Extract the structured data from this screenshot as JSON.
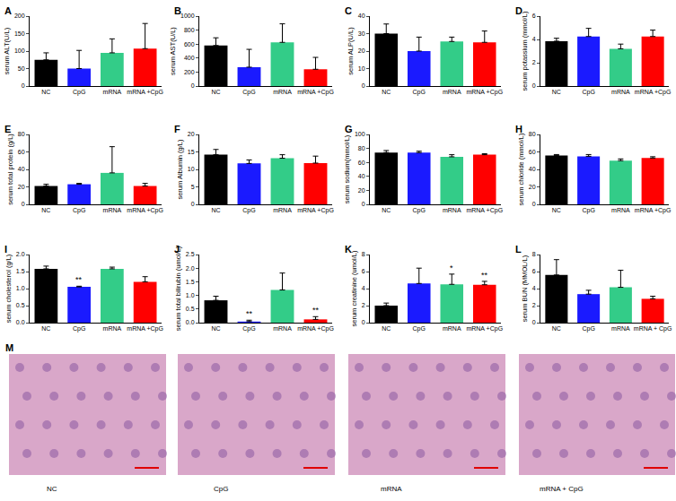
{
  "chart_data": [
    {
      "type": "bar",
      "label": "A",
      "y_label": "serum ALT(U/L)",
      "categories": [
        "NC",
        "CpG",
        "mRNA",
        "mRNA +CpG"
      ],
      "values": [
        75,
        50,
        95,
        107
      ],
      "errors": [
        20,
        52,
        40,
        72
      ],
      "significance": [
        null,
        null,
        null,
        null
      ],
      "colors": [
        "#000000",
        "#1a1aff",
        "#33cc88",
        "#ff0000"
      ],
      "ylim": [
        0,
        200
      ],
      "yticks": [
        0,
        50,
        100,
        150,
        200
      ]
    },
    {
      "type": "bar",
      "label": "B",
      "y_label": "serum AST(U/L)",
      "categories": [
        "NC",
        "CpG",
        "mRNA",
        "mRNA +CpG"
      ],
      "values": [
        580,
        270,
        625,
        240
      ],
      "errors": [
        110,
        255,
        265,
        170
      ],
      "significance": [
        null,
        null,
        null,
        null
      ],
      "colors": [
        "#000000",
        "#1a1aff",
        "#33cc88",
        "#ff0000"
      ],
      "ylim": [
        0,
        1000
      ],
      "yticks": [
        0,
        200,
        400,
        600,
        800,
        1000
      ]
    },
    {
      "type": "bar",
      "label": "C",
      "y_label": "serum ALP(U/L)",
      "categories": [
        "NC",
        "CpG",
        "mRNA",
        "mRNA +CpG"
      ],
      "values": [
        30,
        20,
        25.5,
        25
      ],
      "errors": [
        5.5,
        8,
        2.5,
        6.5
      ],
      "significance": [
        null,
        null,
        null,
        null
      ],
      "colors": [
        "#000000",
        "#1a1aff",
        "#33cc88",
        "#ff0000"
      ],
      "ylim": [
        0,
        40
      ],
      "yticks": [
        0,
        10,
        20,
        30,
        40
      ]
    },
    {
      "type": "bar",
      "label": "D",
      "y_label": "serum potassium (mmol/L)",
      "categories": [
        "NC",
        "CpG",
        "mRNA",
        "mRNA +CpG"
      ],
      "values": [
        3.85,
        4.25,
        3.2,
        4.25
      ],
      "errors": [
        0.25,
        0.7,
        0.4,
        0.55
      ],
      "significance": [
        null,
        null,
        null,
        null
      ],
      "colors": [
        "#000000",
        "#1a1aff",
        "#33cc88",
        "#ff0000"
      ],
      "ylim": [
        0,
        6
      ],
      "yticks": [
        0,
        2,
        4,
        6
      ]
    },
    {
      "type": "bar",
      "label": "E",
      "y_label": "serum total protein (g/L)",
      "categories": [
        "NC",
        "CpG",
        "mRNA",
        "mRNA +CpG"
      ],
      "values": [
        21,
        23,
        36,
        21
      ],
      "errors": [
        2,
        1,
        30,
        3
      ],
      "significance": [
        null,
        null,
        null,
        null
      ],
      "colors": [
        "#000000",
        "#1a1aff",
        "#33cc88",
        "#ff0000"
      ],
      "ylim": [
        0,
        80
      ],
      "yticks": [
        0,
        20,
        40,
        60,
        80
      ]
    },
    {
      "type": "bar",
      "label": "F",
      "y_label": "serum Albumin (g/L)",
      "categories": [
        "NC",
        "CpG",
        "mRNA",
        "mRNA +CpG"
      ],
      "values": [
        14.2,
        11.7,
        13.2,
        11.8
      ],
      "errors": [
        1.5,
        1,
        1,
        2
      ],
      "significance": [
        null,
        null,
        null,
        null
      ],
      "colors": [
        "#000000",
        "#1a1aff",
        "#33cc88",
        "#ff0000"
      ],
      "ylim": [
        0,
        20
      ],
      "yticks": [
        0,
        5,
        10,
        15,
        20
      ]
    },
    {
      "type": "bar",
      "label": "G",
      "y_label": "serum sodium(mmol/L)",
      "categories": [
        "NC",
        "CpG",
        "mRNA",
        "mRNA +CpG"
      ],
      "values": [
        74,
        74,
        68,
        71
      ],
      "errors": [
        3,
        2,
        3,
        1.5
      ],
      "significance": [
        null,
        null,
        null,
        null
      ],
      "colors": [
        "#000000",
        "#1a1aff",
        "#33cc88",
        "#ff0000"
      ],
      "ylim": [
        0,
        100
      ],
      "yticks": [
        0,
        20,
        40,
        60,
        80,
        100
      ]
    },
    {
      "type": "bar",
      "label": "H",
      "y_label": "serum chloride (mmol/L)",
      "categories": [
        "NC",
        "CpG",
        "mRNA",
        "mRNA +CpG"
      ],
      "values": [
        56,
        55,
        50,
        53
      ],
      "errors": [
        1,
        2,
        2,
        1.5
      ],
      "significance": [
        null,
        null,
        null,
        null
      ],
      "colors": [
        "#000000",
        "#1a1aff",
        "#33cc88",
        "#ff0000"
      ],
      "ylim": [
        0,
        80
      ],
      "yticks": [
        0,
        20,
        40,
        60,
        80
      ]
    },
    {
      "type": "bar",
      "label": "I",
      "y_label": "serum cholesterol (g/L)",
      "categories": [
        "NC",
        "CpG",
        "mRNA",
        "mRNA +CpG"
      ],
      "values": [
        1.58,
        1.05,
        1.58,
        1.2
      ],
      "errors": [
        0.08,
        0.02,
        0.05,
        0.15
      ],
      "significance": [
        null,
        "**",
        null,
        null
      ],
      "colors": [
        "#000000",
        "#1a1aff",
        "#33cc88",
        "#ff0000"
      ],
      "ylim": [
        0,
        2
      ],
      "yticks": [
        {
          "value": 0,
          "label": "0.0"
        },
        {
          "value": 0.5,
          "label": "0.5"
        },
        {
          "value": 1,
          "label": "1.0"
        },
        {
          "value": 1.5,
          "label": "1.5"
        },
        {
          "value": 2,
          "label": "2.0"
        }
      ]
    },
    {
      "type": "bar",
      "label": "J",
      "y_label": "serum total bilirubin (umol/L)",
      "categories": [
        "NC",
        "CpG",
        "mRNA",
        "mRNA +CpG"
      ],
      "values": [
        0.82,
        0.04,
        1.2,
        0.12
      ],
      "errors": [
        0.15,
        0.05,
        0.62,
        0.1
      ],
      "significance": [
        null,
        "**",
        null,
        "**"
      ],
      "colors": [
        "#000000",
        "#1a1aff",
        "#33cc88",
        "#ff0000"
      ],
      "ylim": [
        0,
        2.5
      ],
      "yticks": [
        {
          "value": 0,
          "label": "0.0"
        },
        {
          "value": 0.5,
          "label": "0.5"
        },
        {
          "value": 1,
          "label": "1.0"
        },
        {
          "value": 1.5,
          "label": "1.5"
        },
        {
          "value": 2,
          "label": "2.0"
        },
        2.5
      ]
    },
    {
      "type": "bar",
      "label": "K",
      "y_label": "serum creatinine (umol/L)",
      "categories": [
        "NC",
        "CpG",
        "mRNA",
        "mRNA +CpG"
      ],
      "values": [
        2.0,
        4.6,
        4.5,
        4.45
      ],
      "errors": [
        0.3,
        1.8,
        1.2,
        0.4
      ],
      "significance": [
        null,
        null,
        "*",
        "**"
      ],
      "colors": [
        "#000000",
        "#1a1aff",
        "#33cc88",
        "#ff0000"
      ],
      "ylim": [
        0,
        8
      ],
      "yticks": [
        0,
        2,
        4,
        6,
        8
      ]
    },
    {
      "type": "bar",
      "label": "L",
      "y_label": "serum BUN (MMOL/L)",
      "categories": [
        "NC",
        "CpG",
        "mRNA",
        "mRNA + CpG"
      ],
      "values": [
        5.6,
        3.35,
        4.15,
        2.8
      ],
      "errors": [
        1.8,
        0.45,
        2.0,
        0.3
      ],
      "significance": [
        null,
        null,
        null,
        null
      ],
      "colors": [
        "#000000",
        "#1a1aff",
        "#33cc88",
        "#ff0000"
      ],
      "ylim": [
        0,
        8
      ],
      "yticks": [
        0,
        2,
        4,
        6,
        8
      ]
    }
  ],
  "image_panel": {
    "label": "M",
    "images": [
      "NC",
      "CpG",
      "mRNA",
      "mRNA + CpG"
    ]
  }
}
